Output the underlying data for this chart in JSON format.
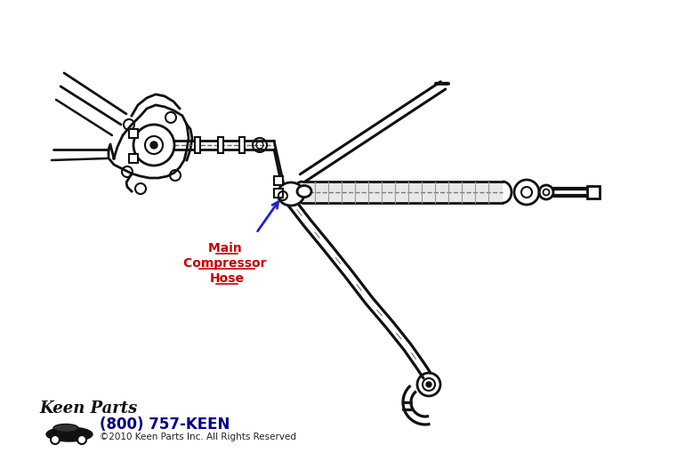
{
  "bg": "#ffffff",
  "lc": "#111111",
  "label_color": "#cc0000",
  "arrow_color": "#2222cc",
  "phone_color": "#00008b",
  "label_lines": [
    "Main ",
    "Compressor ",
    "Hose"
  ],
  "phone": "(800) 757-KEEN",
  "copyright": "©2010 Keen Parts Inc. All Rights Reserved"
}
